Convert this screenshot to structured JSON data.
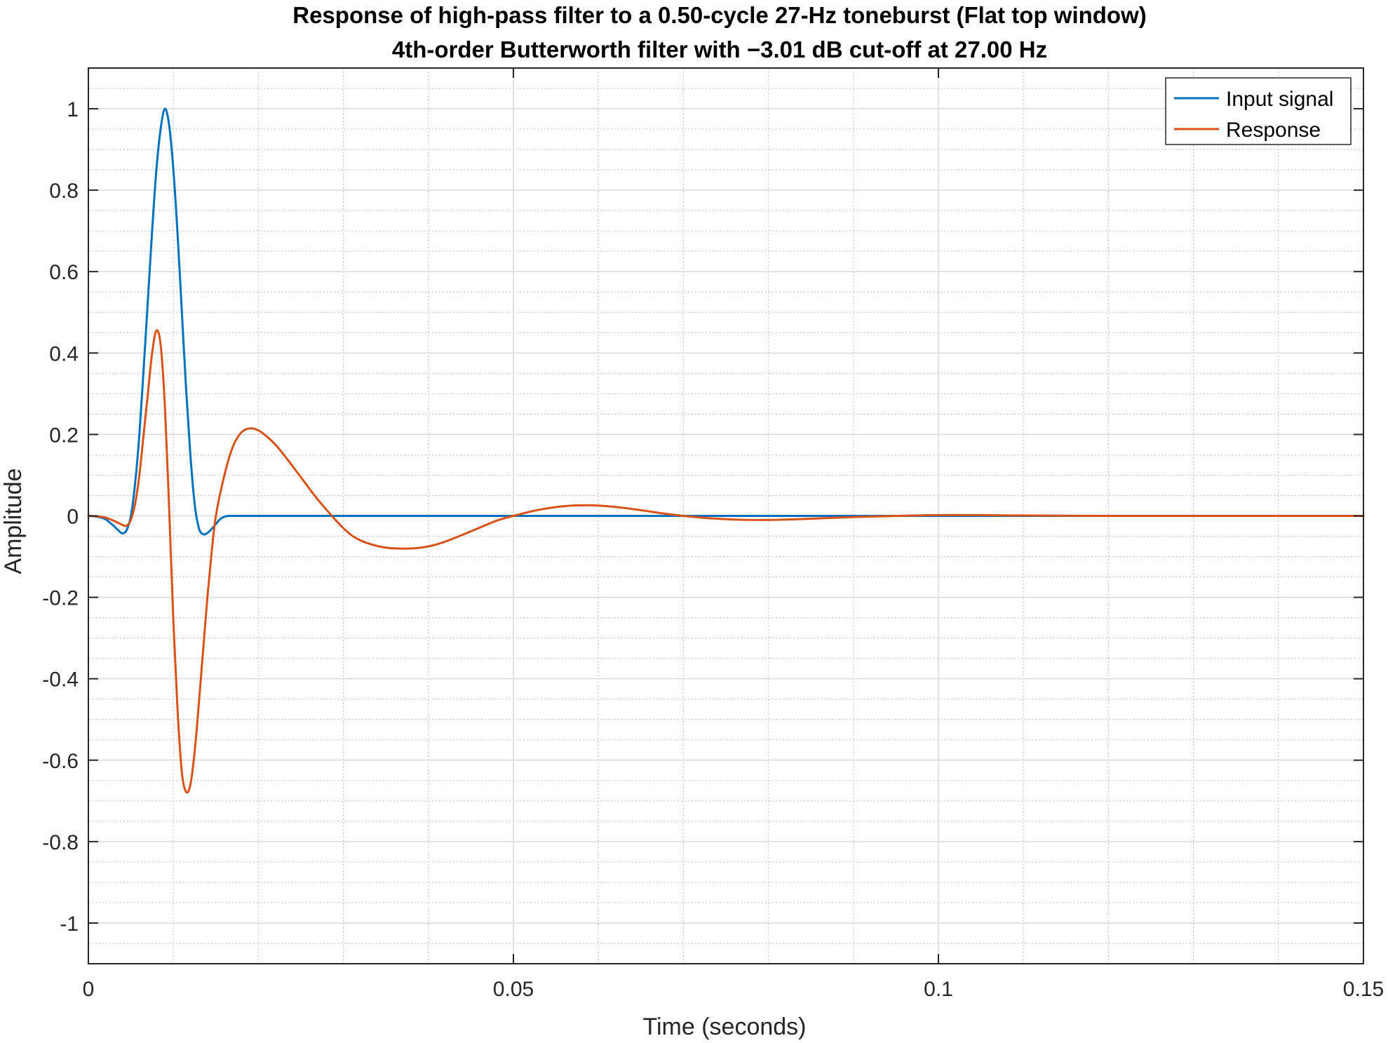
{
  "chart_data": {
    "type": "line",
    "title": "Response of high-pass filter to a 0.50-cycle 27-Hz toneburst (Flat top window)",
    "subtitle": "4th-order Butterworth filter with −3.01 dB cut-off at 27.00 Hz",
    "xlabel": "Time (seconds)",
    "ylabel": "Amplitude",
    "xlim": [
      0,
      0.15
    ],
    "ylim": [
      -1.1,
      1.1
    ],
    "x_ticks": [
      0,
      0.05,
      0.1,
      0.15
    ],
    "x_tick_labels": [
      "0",
      "0.05",
      "0.1",
      "0.15"
    ],
    "y_ticks": [
      1,
      0.8,
      0.6,
      0.4,
      0.2,
      0,
      -0.2,
      -0.4,
      -0.6,
      -0.8,
      -1
    ],
    "y_tick_labels": [
      "1",
      "0.8",
      "0.6",
      "0.4",
      "0.2",
      "0",
      "-0.2",
      "-0.4",
      "-0.6",
      "-0.8",
      "-1"
    ],
    "grid": true,
    "minor_grid": true,
    "legend_position": "top-right",
    "series": [
      {
        "name": "Input signal",
        "color": "#0072BD",
        "x": [
          0,
          0.001,
          0.002,
          0.003,
          0.0035,
          0.004,
          0.0045,
          0.005,
          0.0055,
          0.006,
          0.0065,
          0.007,
          0.0075,
          0.008,
          0.0085,
          0.009,
          0.0095,
          0.01,
          0.0105,
          0.011,
          0.0115,
          0.012,
          0.0125,
          0.013,
          0.0135,
          0.014,
          0.0145,
          0.015,
          0.0155,
          0.016,
          0.0165,
          0.017,
          0.0175,
          0.018,
          0.02,
          0.05,
          0.1,
          0.15
        ],
        "y": [
          0,
          -0.002,
          -0.008,
          -0.025,
          -0.035,
          -0.043,
          -0.035,
          0.0,
          0.08,
          0.2,
          0.36,
          0.53,
          0.7,
          0.85,
          0.95,
          1.0,
          0.96,
          0.85,
          0.69,
          0.5,
          0.31,
          0.15,
          0.03,
          -0.03,
          -0.045,
          -0.042,
          -0.032,
          -0.02,
          -0.008,
          -0.002,
          0.0,
          0.0,
          0.0,
          0.0,
          0.0,
          0.0,
          0.0,
          0.0
        ]
      },
      {
        "name": "Response",
        "color": "#D95319",
        "x": [
          0,
          0.001,
          0.002,
          0.003,
          0.004,
          0.0045,
          0.005,
          0.0055,
          0.006,
          0.0065,
          0.007,
          0.0075,
          0.008,
          0.0085,
          0.009,
          0.0095,
          0.01,
          0.0105,
          0.011,
          0.0115,
          0.012,
          0.0125,
          0.013,
          0.0135,
          0.014,
          0.0145,
          0.015,
          0.016,
          0.017,
          0.018,
          0.019,
          0.02,
          0.021,
          0.022,
          0.023,
          0.025,
          0.027,
          0.03,
          0.032,
          0.035,
          0.038,
          0.04,
          0.042,
          0.045,
          0.048,
          0.05,
          0.053,
          0.056,
          0.059,
          0.062,
          0.065,
          0.068,
          0.072,
          0.076,
          0.08,
          0.085,
          0.09,
          0.1,
          0.11,
          0.12,
          0.13,
          0.14,
          0.15
        ],
        "y": [
          0,
          -0.001,
          -0.004,
          -0.012,
          -0.022,
          -0.024,
          -0.01,
          0.03,
          0.1,
          0.2,
          0.3,
          0.4,
          0.455,
          0.42,
          0.27,
          0.02,
          -0.26,
          -0.48,
          -0.63,
          -0.678,
          -0.66,
          -0.58,
          -0.46,
          -0.33,
          -0.2,
          -0.09,
          0.0,
          0.1,
          0.17,
          0.205,
          0.215,
          0.21,
          0.195,
          0.175,
          0.15,
          0.095,
          0.04,
          -0.03,
          -0.06,
          -0.078,
          -0.08,
          -0.075,
          -0.063,
          -0.038,
          -0.012,
          0.0,
          0.015,
          0.024,
          0.026,
          0.022,
          0.014,
          0.005,
          -0.004,
          -0.009,
          -0.01,
          -0.007,
          -0.003,
          0.002,
          0.001,
          0.0,
          0.0,
          0.0,
          0.0
        ]
      }
    ]
  }
}
